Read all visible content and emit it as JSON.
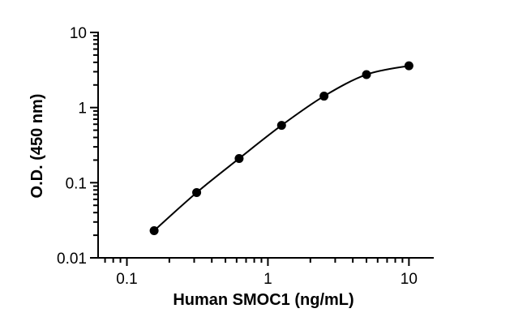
{
  "chart_data": {
    "type": "scatter",
    "title": "",
    "xlabel": "Human SMOC1 (ng/mL)",
    "ylabel": "O.D. (450 nm)",
    "x_scale": "log",
    "y_scale": "log",
    "xlim": [
      0.0625,
      15
    ],
    "ylim": [
      0.01,
      10
    ],
    "x_tick_labels": [
      "0.1",
      "1",
      "10"
    ],
    "y_tick_labels": [
      "0.01",
      "0.1",
      "1",
      "10"
    ],
    "grid": false,
    "legend": "none",
    "series": [
      {
        "points": [
          {
            "x": 0.156,
            "y": 0.023
          },
          {
            "x": 0.3125,
            "y": 0.074
          },
          {
            "x": 0.625,
            "y": 0.21
          },
          {
            "x": 1.25,
            "y": 0.58
          },
          {
            "x": 2.5,
            "y": 1.42
          },
          {
            "x": 5,
            "y": 2.75
          },
          {
            "x": 10,
            "y": 3.6
          }
        ],
        "fit_curve": true,
        "color": "#000000"
      }
    ]
  }
}
